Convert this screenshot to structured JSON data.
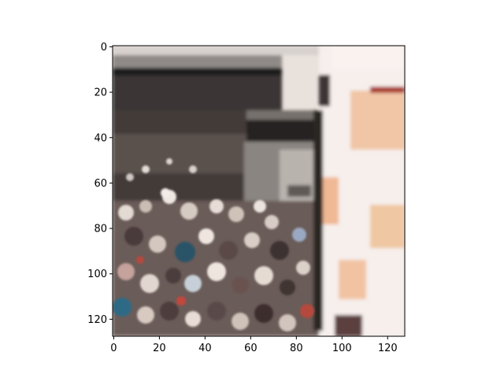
{
  "image_axes": {
    "x_range": [
      0,
      128
    ],
    "y_range": [
      0,
      128
    ],
    "y_inverted": true,
    "x_ticks": [
      {
        "value": 0,
        "label": "0"
      },
      {
        "value": 20,
        "label": "20"
      },
      {
        "value": 40,
        "label": "40"
      },
      {
        "value": 60,
        "label": "60"
      },
      {
        "value": 80,
        "label": "80"
      },
      {
        "value": 100,
        "label": "100"
      },
      {
        "value": 120,
        "label": "120"
      }
    ],
    "y_ticks": [
      {
        "value": 0,
        "label": "0"
      },
      {
        "value": 20,
        "label": "20"
      },
      {
        "value": 40,
        "label": "40"
      },
      {
        "value": 60,
        "label": "60"
      },
      {
        "value": 80,
        "label": "80"
      },
      {
        "value": 100,
        "label": "100"
      },
      {
        "value": 120,
        "label": "120"
      }
    ]
  },
  "scene": {
    "description_icon": "crowd-street-photo",
    "colors": {
      "sky": "#f4eeec",
      "awning_dark": "#2f2b29",
      "awning_gray": "#5b5754",
      "crowd_dark": "#3b3333",
      "crowd_light": "#cfc3bc",
      "building_right": "#f7f0ee",
      "peach": "#f2c7a4",
      "red_accent": "#b03a2e",
      "blue_accent": "#2f6a86"
    }
  }
}
